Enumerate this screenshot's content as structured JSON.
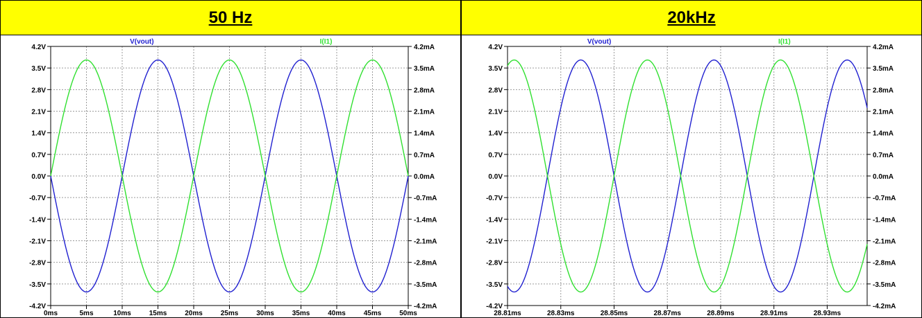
{
  "panels": [
    {
      "title": "50 Hz",
      "colors": {
        "v": "#2020d0",
        "i": "#30e030",
        "grid": "#9a9a9a"
      },
      "chart_data": {
        "type": "line",
        "x_ticks": [
          "0ms",
          "5ms",
          "10ms",
          "15ms",
          "20ms",
          "25ms",
          "30ms",
          "35ms",
          "40ms",
          "45ms",
          "50ms"
        ],
        "xlim": [
          0,
          50
        ],
        "left_ticks": [
          "4.2V",
          "3.5V",
          "2.8V",
          "2.1V",
          "1.4V",
          "0.7V",
          "0.0V",
          "-0.7V",
          "-1.4V",
          "-2.1V",
          "-2.8V",
          "-3.5V",
          "-4.2V"
        ],
        "right_ticks": [
          "4.2mA",
          "3.5mA",
          "2.8mA",
          "2.1mA",
          "1.4mA",
          "0.7mA",
          "0.0mA",
          "-0.7mA",
          "-1.4mA",
          "-2.1mA",
          "-2.8mA",
          "-3.5mA",
          "-4.2mA"
        ],
        "ylim": [
          -4.2,
          4.2
        ],
        "series": [
          {
            "name": "V(vout)",
            "amplitude": 3.76,
            "frequency_hz": 50,
            "phase_deg": 180
          },
          {
            "name": "I(I1)",
            "amplitude": 3.76,
            "frequency_hz": 50,
            "phase_deg": 0
          }
        ]
      }
    },
    {
      "title": "20kHz",
      "colors": {
        "v": "#2020d0",
        "i": "#30e030",
        "grid": "#9a9a9a"
      },
      "chart_data": {
        "type": "line",
        "x_ticks": [
          "28.81ms",
          "28.83ms",
          "28.85ms",
          "28.87ms",
          "28.89ms",
          "28.91ms",
          "28.93ms"
        ],
        "xlim": [
          28.81,
          28.945
        ],
        "left_ticks": [
          "4.2V",
          "3.5V",
          "2.8V",
          "2.1V",
          "1.4V",
          "0.7V",
          "0.0V",
          "-0.7V",
          "-1.4V",
          "-2.1V",
          "-2.8V",
          "-3.5V",
          "-4.2V"
        ],
        "right_ticks": [
          "4.2mA",
          "3.5mA",
          "2.8mA",
          "2.1mA",
          "1.4mA",
          "0.7mA",
          "0.0mA",
          "-0.7mA",
          "-1.4mA",
          "-2.1mA",
          "-2.8mA",
          "-3.5mA",
          "-4.2mA"
        ],
        "ylim": [
          -4.2,
          4.2
        ],
        "series": [
          {
            "name": "V(vout)",
            "amplitude": 3.76,
            "frequency_hz": 20000,
            "phase_deg": 180
          },
          {
            "name": "I(I1)",
            "amplitude": 3.76,
            "frequency_hz": 20000,
            "phase_deg": 0
          }
        ]
      }
    }
  ]
}
